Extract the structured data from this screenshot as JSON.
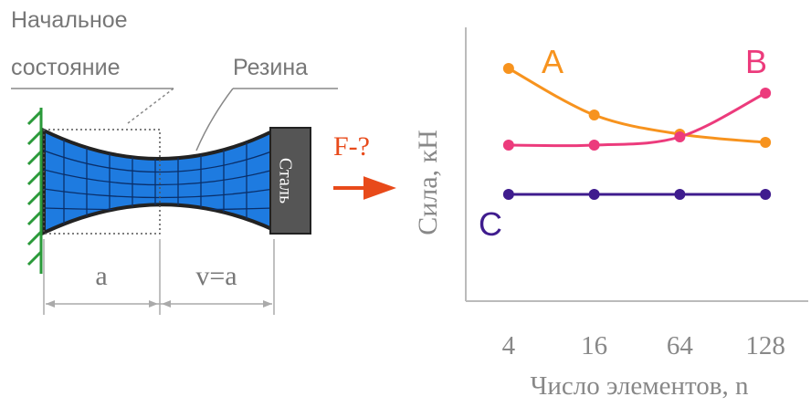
{
  "diagram": {
    "initial_state": [
      "Начальное",
      "состояние"
    ],
    "rubber": "Резина",
    "steel": "Сталь",
    "dim_a": "a",
    "dim_v": "v=a",
    "force": "F-?"
  },
  "chart_data": {
    "type": "line",
    "y_label": "Сила, кН",
    "x_label": "Число элементов, n",
    "categories": [
      "4",
      "16",
      "64",
      "128"
    ],
    "series": [
      {
        "name": "A",
        "color": "#f7931e",
        "values": [
          85,
          68,
          61,
          58
        ]
      },
      {
        "name": "B",
        "color": "#ec3b7c",
        "values": [
          57,
          57,
          60,
          76
        ]
      },
      {
        "name": "C",
        "color": "#3f1c8e",
        "values": [
          39,
          39,
          39,
          39
        ]
      }
    ],
    "ylim": [
      0,
      100
    ]
  }
}
